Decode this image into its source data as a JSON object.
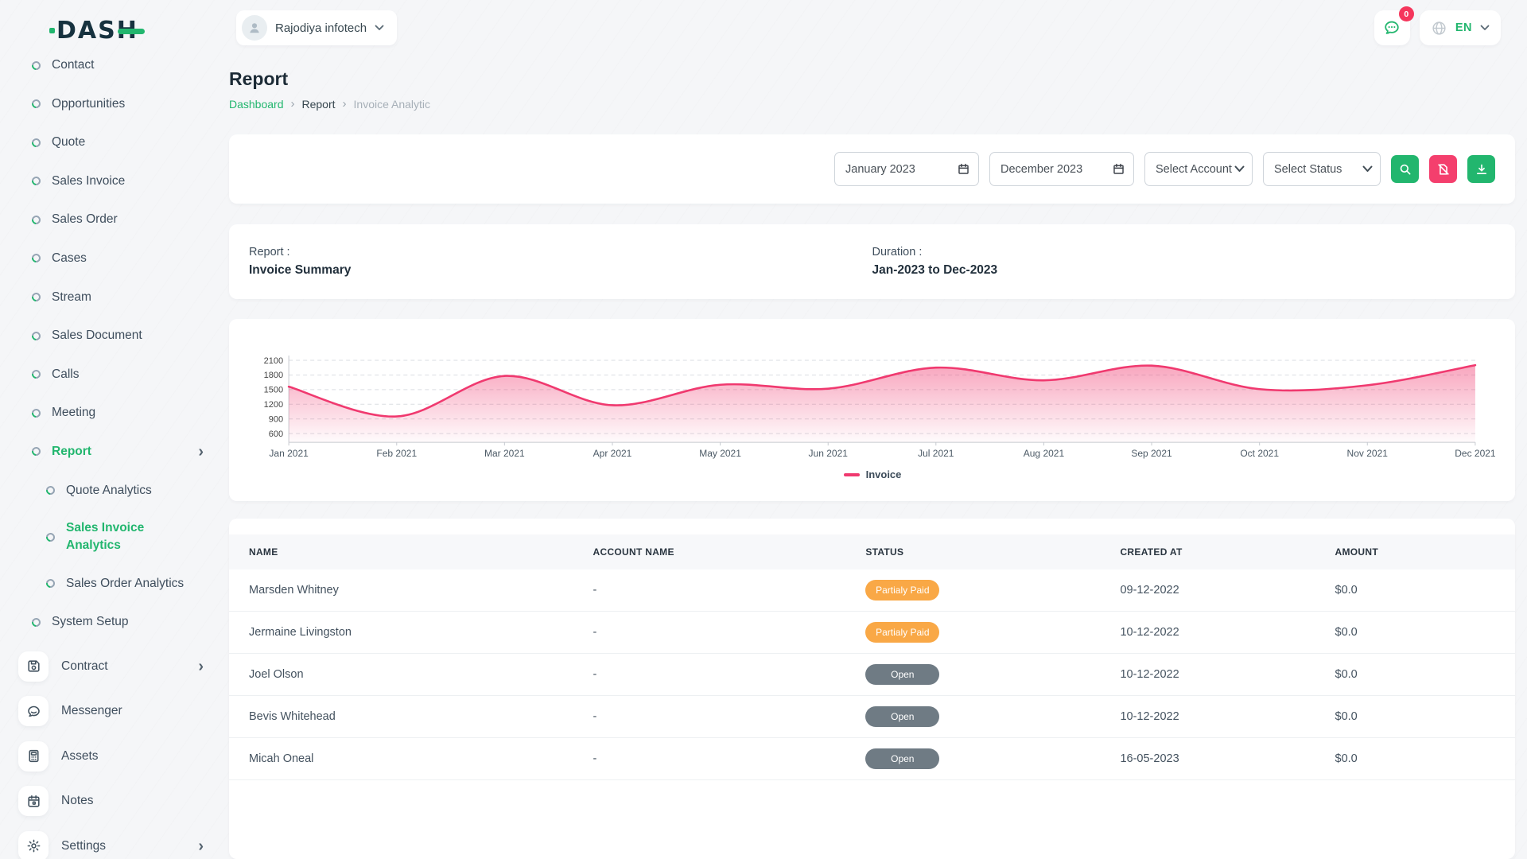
{
  "brand": {
    "name": "DASH"
  },
  "topbar": {
    "company_name": "Rajodiya infotech",
    "notification_badge": "0",
    "language": "EN"
  },
  "page": {
    "title": "Report",
    "breadcrumb": [
      {
        "label": "Dashboard",
        "type": "link"
      },
      {
        "label": "Report",
        "type": "page"
      },
      {
        "label": "Invoice Analytic",
        "type": "current"
      }
    ]
  },
  "sidebar": {
    "items": [
      {
        "id": "contact",
        "label": "Contact",
        "icon": "donut"
      },
      {
        "id": "opportunities",
        "label": "Opportunities",
        "icon": "donut"
      },
      {
        "id": "quote",
        "label": "Quote",
        "icon": "donut"
      },
      {
        "id": "sales-invoice",
        "label": "Sales Invoice",
        "icon": "donut"
      },
      {
        "id": "sales-order",
        "label": "Sales Order",
        "icon": "donut"
      },
      {
        "id": "cases",
        "label": "Cases",
        "icon": "donut"
      },
      {
        "id": "stream",
        "label": "Stream",
        "icon": "donut"
      },
      {
        "id": "sales-document",
        "label": "Sales Document",
        "icon": "donut"
      },
      {
        "id": "calls",
        "label": "Calls",
        "icon": "donut"
      },
      {
        "id": "meeting",
        "label": "Meeting",
        "icon": "donut"
      },
      {
        "id": "report",
        "label": "Report",
        "icon": "donut",
        "active": true,
        "chevron": "right"
      },
      {
        "id": "quote-analytics",
        "label": "Quote Analytics",
        "icon": "donut",
        "sub": true
      },
      {
        "id": "sales-invoice-analytics",
        "label": "Sales Invoice Analytics",
        "icon": "donut",
        "sub": true,
        "active": true
      },
      {
        "id": "sales-order-analytics",
        "label": "Sales Order Analytics",
        "icon": "donut",
        "sub": true
      },
      {
        "id": "system-setup",
        "label": "System Setup",
        "icon": "donut"
      },
      {
        "id": "contract",
        "label": "Contract",
        "icon": "save",
        "boxed": true,
        "chevron": "right"
      },
      {
        "id": "messenger",
        "label": "Messenger",
        "icon": "chat",
        "boxed": true
      },
      {
        "id": "assets",
        "label": "Assets",
        "icon": "calculator",
        "boxed": true
      },
      {
        "id": "notes",
        "label": "Notes",
        "icon": "calendar",
        "boxed": true
      },
      {
        "id": "settings",
        "label": "Settings",
        "icon": "gear",
        "boxed": true,
        "chevron": "right"
      }
    ]
  },
  "filters": {
    "start_date": "January 2023",
    "end_date": "December 2023",
    "account_select": "Select Account",
    "status_select": "Select Status"
  },
  "summary": {
    "report_label": "Report :",
    "report_value": "Invoice Summary",
    "duration_label": "Duration :",
    "duration_value": "Jan-2023 to Dec-2023"
  },
  "chart_data": {
    "type": "area",
    "title": "",
    "x": [
      "Jan 2021",
      "Feb 2021",
      "Mar 2021",
      "Apr 2021",
      "May 2021",
      "Jun 2021",
      "Jul 2021",
      "Aug 2021",
      "Sep 2021",
      "Oct 2021",
      "Nov 2021",
      "Dec 2021"
    ],
    "series": [
      {
        "name": "Invoice",
        "values": [
          1560,
          950,
          1780,
          1180,
          1600,
          1520,
          1950,
          1690,
          1990,
          1510,
          1590,
          2000
        ]
      }
    ],
    "yticks": [
      600,
      900,
      1200,
      1500,
      1800,
      2100
    ],
    "ylim": [
      350,
      2300
    ],
    "xlabel": "",
    "ylabel": "",
    "grid": "horizontal-dashed",
    "legend": "Invoice",
    "legend_position": "bottom",
    "line_color": "#f0396f",
    "fill": "gradient-pink-to-transparent"
  },
  "table": {
    "columns": [
      "NAME",
      "ACCOUNT NAME",
      "STATUS",
      "CREATED AT",
      "AMOUNT"
    ],
    "rows": [
      {
        "name": "Marsden Whitney",
        "account_name": "-",
        "status": "Partialy Paid",
        "status_type": "partial",
        "created_at": "09-12-2022",
        "amount": "$0.0"
      },
      {
        "name": "Jermaine Livingston",
        "account_name": "-",
        "status": "Partialy Paid",
        "status_type": "partial",
        "created_at": "10-12-2022",
        "amount": "$0.0"
      },
      {
        "name": "Joel Olson",
        "account_name": "-",
        "status": "Open",
        "status_type": "open",
        "created_at": "10-12-2022",
        "amount": "$0.0"
      },
      {
        "name": "Bevis Whitehead",
        "account_name": "-",
        "status": "Open",
        "status_type": "open",
        "created_at": "10-12-2022",
        "amount": "$0.0"
      },
      {
        "name": "Micah Oneal",
        "account_name": "-",
        "status": "Open",
        "status_type": "open",
        "created_at": "16-05-2023",
        "amount": "$0.0"
      }
    ]
  },
  "colors": {
    "accent_green": "#22b66e",
    "pink": "#f43f6d",
    "chart_line": "#f0396f",
    "badge_partial": "#f9a846",
    "badge_open": "#6f7b84",
    "badge_red": "#f5365c",
    "navy": "#17323f"
  }
}
